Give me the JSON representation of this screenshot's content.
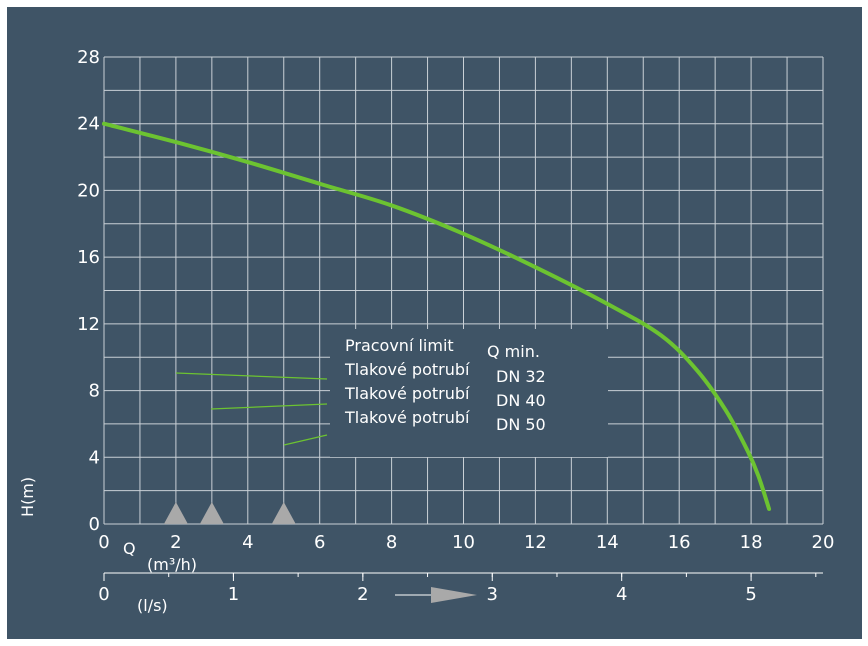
{
  "colors": {
    "background": "#3f5466",
    "grid": "#c9d0d6",
    "curve": "#6cc331",
    "marker": "#a9a9a9",
    "legend_box": "#3f5466",
    "text": "#ffffff"
  },
  "chart_data": {
    "type": "line",
    "title": "",
    "ylabel": "H(m)",
    "xlabel": "Q (m³/h)",
    "xlabel_q": "Q",
    "xlabel_unit": "(m³/h)",
    "x2label": "(l/s)",
    "xlim": [
      0,
      20
    ],
    "ylim": [
      0,
      28
    ],
    "x_ticks": [
      "0",
      "2",
      "4",
      "6",
      "8",
      "10",
      "12",
      "14",
      "16",
      "18",
      "20"
    ],
    "y_ticks": [
      "0",
      "4",
      "8",
      "12",
      "16",
      "20",
      "24",
      "28"
    ],
    "x2_ticks": [
      "0",
      "1",
      "2",
      "3",
      "4",
      "5"
    ],
    "grid": true,
    "series": [
      {
        "x": [
          0,
          2,
          4,
          6,
          8,
          10,
          12,
          14,
          15.5,
          16.5,
          17.3,
          17.9,
          18.2,
          18.5
        ],
        "y": [
          24,
          22.9,
          21.7,
          20.4,
          19.1,
          17.4,
          15.4,
          13.2,
          11.3,
          9.2,
          6.8,
          4.4,
          2.9,
          0.9
        ]
      }
    ],
    "markers_q": [
      2,
      3,
      5
    ],
    "annotations": {
      "line1_a": "Pracovní limit",
      "line1_b": "Q min.",
      "line2_a": "Tlakové potrubí",
      "line2_b": "DN 32",
      "line3_a": "Tlakové potrubí",
      "line3_b": "DN 40",
      "line4_a": "Tlakové potrubí",
      "line4_b": "DN 50"
    }
  }
}
